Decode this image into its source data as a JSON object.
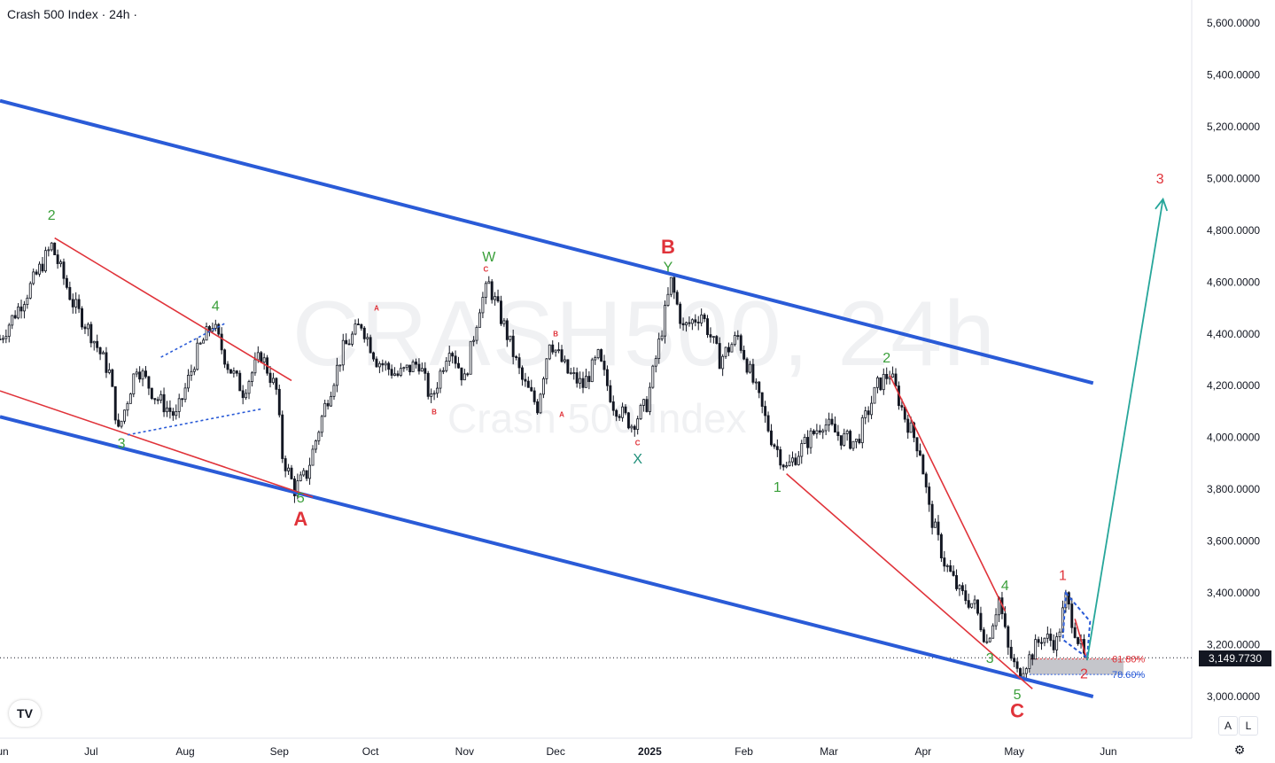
{
  "header": {
    "title": "Crash 500 Index · 24h ·"
  },
  "watermark": {
    "symbol": "CRASH500, 24h",
    "name": "Crash 500 Index"
  },
  "last_price": {
    "value": "3,149.7730"
  },
  "controls": {
    "auto_label": "A",
    "log_label": "L",
    "logo_label": "TV",
    "settings_icon": "gear-icon"
  },
  "colors": {
    "channel": "#2a5bd7",
    "wedge": "#e0333a",
    "projection": "#26a69a",
    "wave_green": "#3a9f3a",
    "wave_red": "#e0333a",
    "wave_teal": "#20907a",
    "candle": "#131722",
    "fib_zone": "#9598a1"
  },
  "chart_data": {
    "type": "candlestick",
    "title": "Crash 500 Index · 24h ·",
    "ylim": [
      2900,
      5700
    ],
    "y_ticks": [
      3000,
      3200,
      3400,
      3600,
      3800,
      4000,
      4200,
      4400,
      4600,
      4800,
      5000,
      5200,
      5400,
      5600
    ],
    "y_tick_labels": [
      "3,000.0000",
      "3,200.0000",
      "3,400.0000",
      "3,600.0000",
      "3,800.0000",
      "4,000.0000",
      "4,200.0000",
      "4,400.0000",
      "4,600.0000",
      "4,800.0000",
      "5,000.0000",
      "5,200.0000",
      "5,400.0000",
      "5,600.0000"
    ],
    "x_labels": [
      "Jun",
      "Jul",
      "Aug",
      "Sep",
      "Oct",
      "Nov",
      "Dec",
      "2025",
      "Feb",
      "Mar",
      "Apr",
      "May",
      "Jun"
    ],
    "x_label_dates": [
      "2024-06-01",
      "2024-07-01",
      "2024-08-01",
      "2024-09-01",
      "2024-10-01",
      "2024-11-01",
      "2024-12-01",
      "2025-01-01",
      "2025-02-01",
      "2025-03-01",
      "2025-04-01",
      "2025-05-01",
      "2025-06-01"
    ],
    "x_range": [
      "2024-06-01",
      "2025-06-27"
    ],
    "last_price": 3149.773,
    "price_path": [
      [
        "2024-06-01",
        4380
      ],
      [
        "2024-06-10",
        4560
      ],
      [
        "2024-06-18",
        4740
      ],
      [
        "2024-06-25",
        4520
      ],
      [
        "2024-07-01",
        4400
      ],
      [
        "2024-07-07",
        4250
      ],
      [
        "2024-07-10",
        4020
      ],
      [
        "2024-07-16",
        4280
      ],
      [
        "2024-07-22",
        4160
      ],
      [
        "2024-07-29",
        4080
      ],
      [
        "2024-08-05",
        4330
      ],
      [
        "2024-08-10",
        4440
      ],
      [
        "2024-08-15",
        4280
      ],
      [
        "2024-08-20",
        4180
      ],
      [
        "2024-08-26",
        4320
      ],
      [
        "2024-08-31",
        4180
      ],
      [
        "2024-09-02",
        3930
      ],
      [
        "2024-09-06",
        3800
      ],
      [
        "2024-09-10",
        3860
      ],
      [
        "2024-09-16",
        4120
      ],
      [
        "2024-09-22",
        4340
      ],
      [
        "2024-09-28",
        4440
      ],
      [
        "2024-10-03",
        4300
      ],
      [
        "2024-10-10",
        4240
      ],
      [
        "2024-10-17",
        4290
      ],
      [
        "2024-10-21",
        4140
      ],
      [
        "2024-10-27",
        4360
      ],
      [
        "2024-11-01",
        4220
      ],
      [
        "2024-11-06",
        4510
      ],
      [
        "2024-11-09",
        4590
      ],
      [
        "2024-11-14",
        4430
      ],
      [
        "2024-11-20",
        4220
      ],
      [
        "2024-11-25",
        4120
      ],
      [
        "2024-11-29",
        4380
      ],
      [
        "2024-12-05",
        4250
      ],
      [
        "2024-12-10",
        4200
      ],
      [
        "2024-12-15",
        4310
      ],
      [
        "2024-12-20",
        4130
      ],
      [
        "2024-12-26",
        4050
      ],
      [
        "2024-12-31",
        4130
      ],
      [
        "2025-01-05",
        4420
      ],
      [
        "2025-01-08",
        4600
      ],
      [
        "2025-01-12",
        4420
      ],
      [
        "2025-01-18",
        4480
      ],
      [
        "2025-01-24",
        4300
      ],
      [
        "2025-01-30",
        4390
      ],
      [
        "2025-02-05",
        4180
      ],
      [
        "2025-02-10",
        4000
      ],
      [
        "2025-02-15",
        3880
      ],
      [
        "2025-02-20",
        3960
      ],
      [
        "2025-02-27",
        4060
      ],
      [
        "2025-03-05",
        4000
      ],
      [
        "2025-03-10",
        3980
      ],
      [
        "2025-03-17",
        4200
      ],
      [
        "2025-03-21",
        4250
      ],
      [
        "2025-03-26",
        4080
      ],
      [
        "2025-03-31",
        3950
      ],
      [
        "2025-04-03",
        3720
      ],
      [
        "2025-04-08",
        3520
      ],
      [
        "2025-04-13",
        3400
      ],
      [
        "2025-04-18",
        3350
      ],
      [
        "2025-04-22",
        3210
      ],
      [
        "2025-04-26",
        3380
      ],
      [
        "2025-04-29",
        3180
      ],
      [
        "2025-05-02",
        3090
      ],
      [
        "2025-05-06",
        3150
      ],
      [
        "2025-05-10",
        3230
      ],
      [
        "2025-05-15",
        3210
      ],
      [
        "2025-05-18",
        3380
      ],
      [
        "2025-05-21",
        3260
      ],
      [
        "2025-05-24",
        3150
      ]
    ],
    "channel": {
      "upper": [
        [
          "2024-06-01",
          5300
        ],
        [
          "2025-05-27",
          4210
        ]
      ],
      "lower": [
        [
          "2024-06-01",
          4080
        ],
        [
          "2025-05-27",
          3000
        ]
      ]
    },
    "wedges": [
      {
        "from": [
          "2024-06-19",
          4770
        ],
        "to": [
          "2024-09-05",
          4220
        ]
      },
      {
        "from": [
          "2024-06-01",
          4180
        ],
        "to": [
          "2024-09-12",
          3770
        ]
      },
      {
        "from": [
          "2025-03-21",
          4240
        ],
        "to": [
          "2025-04-28",
          3330
        ]
      },
      {
        "from": [
          "2025-02-15",
          3860
        ],
        "to": [
          "2025-05-07",
          3030
        ]
      },
      {
        "from": [
          "2025-05-21",
          3300
        ],
        "to": [
          "2025-05-25",
          3140
        ]
      }
    ],
    "triangle": {
      "top": [
        [
          "2024-07-24",
          4310
        ],
        [
          "2024-08-14",
          4440
        ]
      ],
      "bottom": [
        [
          "2024-07-13",
          4010
        ],
        [
          "2024-08-26",
          4110
        ]
      ]
    },
    "flag": {
      "points": [
        [
          "2025-05-18",
          3400
        ],
        [
          "2025-05-26",
          3290
        ],
        [
          "2025-05-25",
          3150
        ],
        [
          "2025-05-17",
          3220
        ]
      ]
    },
    "projection": [
      [
        "2025-05-25",
        3140
      ],
      [
        "2025-06-19",
        4920
      ]
    ],
    "fib_zone": {
      "x": [
        "2025-05-06",
        "2025-06-06"
      ],
      "y": [
        3085,
        3145
      ]
    },
    "fib_levels": [
      {
        "label": "61.80%",
        "value": 3145,
        "color": "#e0333a"
      },
      {
        "label": "78.60%",
        "value": 3085,
        "color": "#2a5bd7"
      }
    ],
    "wave_labels": [
      {
        "text": "2",
        "date": "2024-06-18",
        "price": 4840,
        "color": "green",
        "size": "md"
      },
      {
        "text": "3",
        "date": "2024-07-11",
        "price": 3960,
        "color": "green",
        "size": "md"
      },
      {
        "text": "4",
        "date": "2024-08-11",
        "price": 4490,
        "color": "green",
        "size": "md"
      },
      {
        "text": "5",
        "date": "2024-09-08",
        "price": 3750,
        "color": "green",
        "size": "md"
      },
      {
        "text": "A",
        "date": "2024-09-08",
        "price": 3660,
        "color": "red",
        "size": "lg"
      },
      {
        "text": "A",
        "date": "2024-10-03",
        "price": 4490,
        "color": "red",
        "size": "xs"
      },
      {
        "text": "B",
        "date": "2024-10-22",
        "price": 4090,
        "color": "red",
        "size": "xs"
      },
      {
        "text": "C",
        "date": "2024-11-08",
        "price": 4640,
        "color": "red",
        "size": "xs"
      },
      {
        "text": "W",
        "date": "2024-11-09",
        "price": 4680,
        "color": "green",
        "size": "md"
      },
      {
        "text": "B",
        "date": "2024-12-01",
        "price": 4390,
        "color": "red",
        "size": "xs"
      },
      {
        "text": "A",
        "date": "2024-12-03",
        "price": 4080,
        "color": "red",
        "size": "xs"
      },
      {
        "text": "C",
        "date": "2024-12-28",
        "price": 3970,
        "color": "red",
        "size": "xs"
      },
      {
        "text": "X",
        "date": "2024-12-28",
        "price": 3900,
        "color": "teal",
        "size": "md"
      },
      {
        "text": "Y",
        "date": "2025-01-07",
        "price": 4640,
        "color": "green",
        "size": "md"
      },
      {
        "text": "B",
        "date": "2025-01-07",
        "price": 4710,
        "color": "red",
        "size": "lg"
      },
      {
        "text": "1",
        "date": "2025-02-12",
        "price": 3790,
        "color": "green",
        "size": "md"
      },
      {
        "text": "2",
        "date": "2025-03-20",
        "price": 4290,
        "color": "green",
        "size": "md"
      },
      {
        "text": "3",
        "date": "2025-04-23",
        "price": 3130,
        "color": "green",
        "size": "md"
      },
      {
        "text": "4",
        "date": "2025-04-28",
        "price": 3410,
        "color": "green",
        "size": "md"
      },
      {
        "text": "5",
        "date": "2025-05-02",
        "price": 2990,
        "color": "green",
        "size": "md"
      },
      {
        "text": "C",
        "date": "2025-05-02",
        "price": 2920,
        "color": "red",
        "size": "lg"
      },
      {
        "text": "1",
        "date": "2025-05-17",
        "price": 3450,
        "color": "red",
        "size": "md"
      },
      {
        "text": "2",
        "date": "2025-05-24",
        "price": 3070,
        "color": "red",
        "size": "md"
      },
      {
        "text": "3",
        "date": "2025-06-18",
        "price": 4980,
        "color": "red",
        "size": "md"
      }
    ]
  }
}
